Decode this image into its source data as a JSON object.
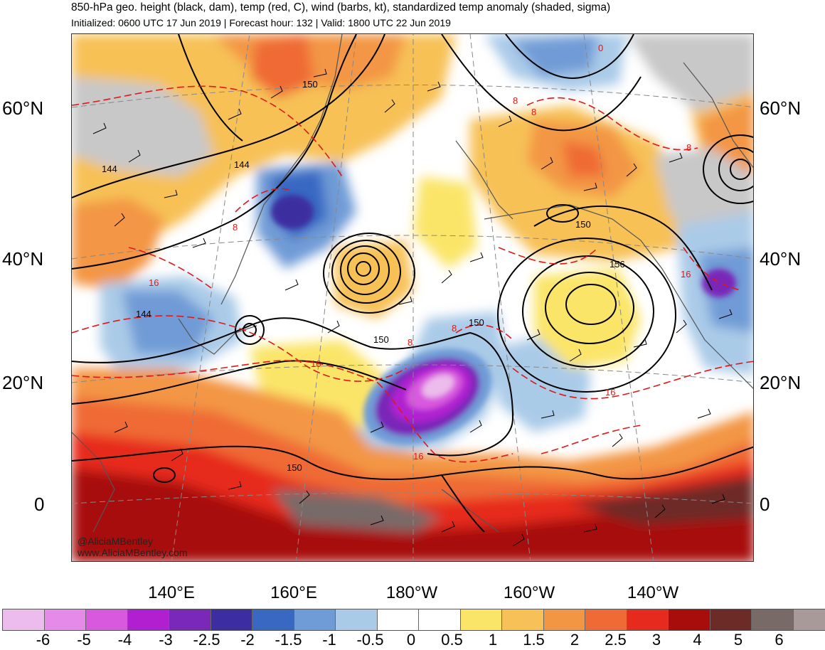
{
  "title": "850-hPa geo. height (black, dam), temp (red, C), wind (barbs, kt), standardized temp anomaly (shaded, sigma)",
  "subtitle": "Initialized: 0600 UTC 17 Jun 2019 | Forecast hour: 132 | Valid: 1800 UTC 22 Jun 2019",
  "lat_labels": [
    "60°N",
    "40°N",
    "20°N",
    "0"
  ],
  "lon_labels": [
    "140°E",
    "160°E",
    "180°W",
    "160°W",
    "140°W"
  ],
  "height_contour_labels": [
    "150",
    "144",
    "144",
    "150",
    "150",
    "156",
    "150",
    "150",
    "144"
  ],
  "temp_contour_labels": [
    "8",
    "8",
    "8",
    "16",
    "8",
    "16",
    "16",
    "8",
    "16",
    "8",
    "16",
    "0"
  ],
  "watermark": {
    "handle": "@AliciaMBentley",
    "site": "www.AliciaMBentley.com"
  },
  "colorbar": {
    "ticks": [
      "-6",
      "-5",
      "-4",
      "-3",
      "-2.5",
      "-2",
      "-1.5",
      "-1",
      "-0.5",
      "0",
      "0.5",
      "1",
      "1.5",
      "2",
      "2.5",
      "3",
      "4",
      "5",
      "6"
    ],
    "colors": [
      "#ecbcec",
      "#e68ae9",
      "#d858de",
      "#b020d0",
      "#7a28b8",
      "#3c2ea0",
      "#3868c2",
      "#6f9bd6",
      "#aacbe8",
      "#ffffff",
      "#ffffff",
      "#fbe569",
      "#f7c157",
      "#f39644",
      "#ef6a35",
      "#e62a1e",
      "#a80d0c",
      "#6d2b28",
      "#786a67",
      "#a89a98"
    ]
  },
  "colors": {
    "height_contour": "#000000",
    "temp_contour": "#e01818",
    "land_gray": "#c8c8c8",
    "coast": "#555555"
  }
}
